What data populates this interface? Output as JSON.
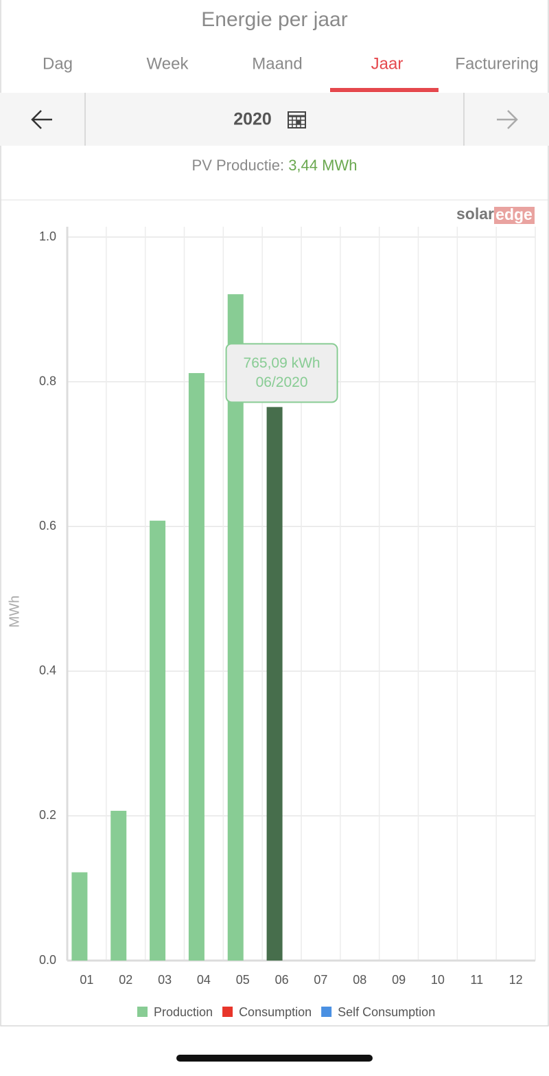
{
  "header": {
    "title": "Energie per jaar"
  },
  "tabs": [
    "Dag",
    "Week",
    "Maand",
    "Jaar",
    "Facturering"
  ],
  "active_tab": 3,
  "period": {
    "label": "2020"
  },
  "summary": {
    "label": "PV Productie: ",
    "value": "3,44 MWh"
  },
  "logo": {
    "part1": "solar",
    "part2": "edge"
  },
  "chart_data": {
    "type": "bar",
    "categories": [
      "01",
      "02",
      "03",
      "04",
      "05",
      "06",
      "07",
      "08",
      "09",
      "10",
      "11",
      "12"
    ],
    "series": [
      {
        "name": "Production",
        "color": "#88cc94",
        "values": [
          0.122,
          0.207,
          0.608,
          0.812,
          0.921,
          0.76509,
          null,
          null,
          null,
          null,
          null,
          null
        ],
        "value_labels": [
          null,
          null,
          null,
          null,
          null,
          "765,09 kWh",
          null,
          null,
          null,
          null,
          null,
          null
        ]
      },
      {
        "name": "Consumption",
        "color": "#e8352a",
        "values": [
          null,
          null,
          null,
          null,
          null,
          null,
          null,
          null,
          null,
          null,
          null,
          null
        ]
      },
      {
        "name": "Self Consumption",
        "color": "#4a90e2",
        "values": [
          null,
          null,
          null,
          null,
          null,
          null,
          null,
          null,
          null,
          null,
          null,
          null
        ]
      }
    ],
    "highlight": {
      "index": 5,
      "color": "#476e4c",
      "date": "06/2020"
    },
    "ylabel": "MWh",
    "ylim": [
      0,
      1
    ],
    "yticks": [
      {
        "value": 0,
        "label": "0.0"
      },
      0.2,
      0.4,
      0.6,
      0.8,
      {
        "value": 1,
        "label": "1.0"
      }
    ],
    "grid": true
  }
}
